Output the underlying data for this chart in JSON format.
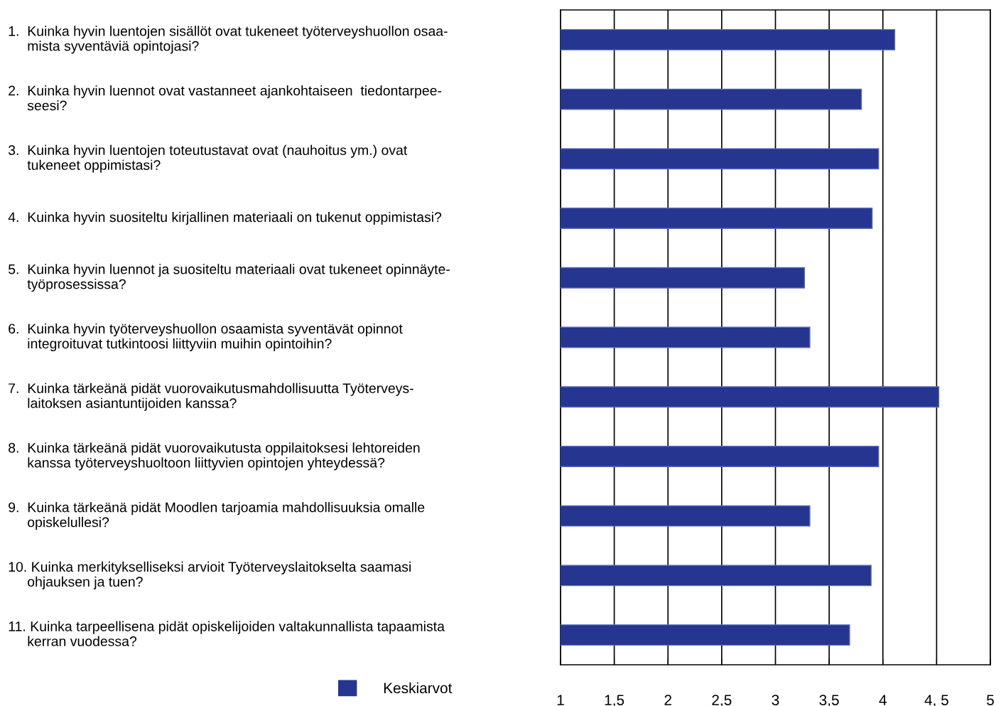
{
  "chart_data": {
    "type": "bar",
    "orientation": "horizontal",
    "categories": [
      "1.  Kuinka hyvin luentojen sisällöt ovat tukeneet työterveyshuollon osaa-\n     mista syventäviä opintojasi?",
      "2.  Kuinka hyvin luennot ovat vastanneet ajankohtaiseen  tiedontarpee-\n     seesi?",
      "3.  Kuinka hyvin luentojen toteutustavat ovat (nauhoitus ym.) ovat\n     tukeneet oppimistasi?",
      "4.  Kuinka hyvin suositeltu kirjallinen materiaali on tukenut oppimistasi?",
      "5.  Kuinka hyvin luennot ja suositeltu materiaali ovat tukeneet opinnäyte-\n     työprosessissa?",
      "6.  Kuinka hyvin työterveyshuollon osaamista syventävät opinnot\n     integroituvat tutkintoosi liittyviin muihin opintoihin?",
      "7.  Kuinka tärkeänä pidät vuorovaikutusmahdollisuutta Työterveys-\n     laitoksen asiantuntijoiden kanssa?",
      "8.  Kuinka tärkeänä pidät vuorovaikutusta oppilaitoksesi lehtoreiden\n     kanssa työterveyshuoltoon liittyvien opintojen yhteydessä?",
      "9.  Kuinka tärkeänä pidät Moodlen tarjoamia mahdollisuuksia omalle\n     opiskelullesi?",
      "10. Kuinka merkitykselliseksi arvioit Työterveyslaitokselta saamasi\n     ohjauksen ja tuen?",
      "11. Kuinka tarpeellisena pidät opiskelijoiden valtakunnallista tapaamista\n     kerran vuodessa?"
    ],
    "series": [
      {
        "name": "Keskiarvot",
        "color": "#26358f",
        "values": [
          4.11,
          3.8,
          3.96,
          3.9,
          3.27,
          3.32,
          4.52,
          3.96,
          3.32,
          3.89,
          3.69
        ]
      }
    ],
    "xlim": [
      1,
      5
    ],
    "xticks": [
      1,
      {
        "value": 1.5,
        "label": "1,5"
      },
      2,
      {
        "value": 2.5,
        "label": "2,5"
      },
      3,
      {
        "value": 3.5,
        "label": "3,5"
      },
      4,
      {
        "value": 4.5,
        "label": "4, 5"
      },
      5
    ],
    "grid": "x",
    "legend": "bottom"
  }
}
